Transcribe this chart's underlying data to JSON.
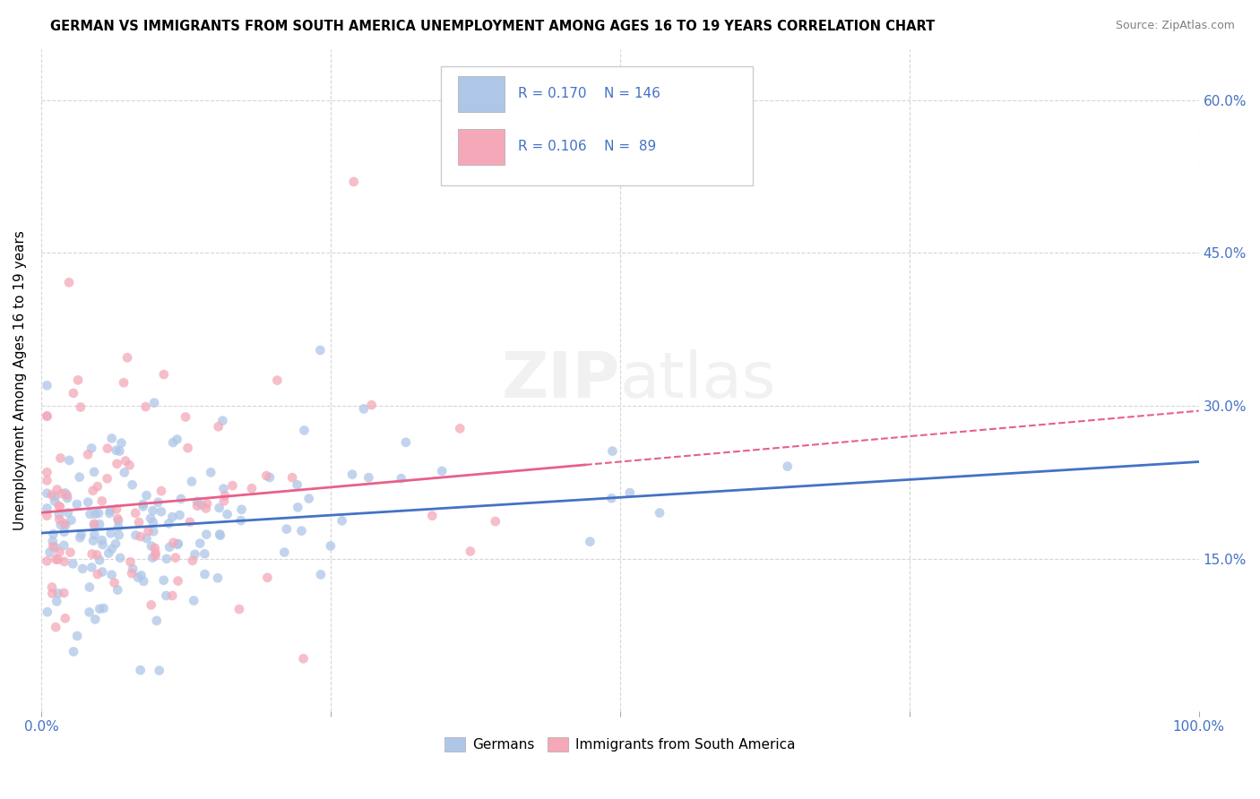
{
  "title": "GERMAN VS IMMIGRANTS FROM SOUTH AMERICA UNEMPLOYMENT AMONG AGES 16 TO 19 YEARS CORRELATION CHART",
  "source": "Source: ZipAtlas.com",
  "ylabel": "Unemployment Among Ages 16 to 19 years",
  "xlim": [
    0,
    1.0
  ],
  "ylim": [
    0,
    0.65
  ],
  "ytick_labels_right": [
    "15.0%",
    "30.0%",
    "45.0%",
    "60.0%"
  ],
  "ytick_positions_right": [
    0.15,
    0.3,
    0.45,
    0.6
  ],
  "german_color": "#aec6e8",
  "immigrant_color": "#f4a8b8",
  "german_line_color": "#4472c4",
  "immigrant_line_color": "#e8608a",
  "legend_german_label": "Germans",
  "legend_immigrant_label": "Immigrants from South America",
  "R_german": "0.170",
  "N_german": "146",
  "R_immigrant": "0.106",
  "N_immigrant": "89",
  "watermark": "ZIPatlas",
  "german_line_x0": 0.0,
  "german_line_y0": 0.175,
  "german_line_x1": 1.0,
  "german_line_y1": 0.245,
  "immigrant_line_x0": 0.0,
  "immigrant_line_y0": 0.195,
  "immigrant_line_x1": 1.0,
  "immigrant_line_y1": 0.295
}
